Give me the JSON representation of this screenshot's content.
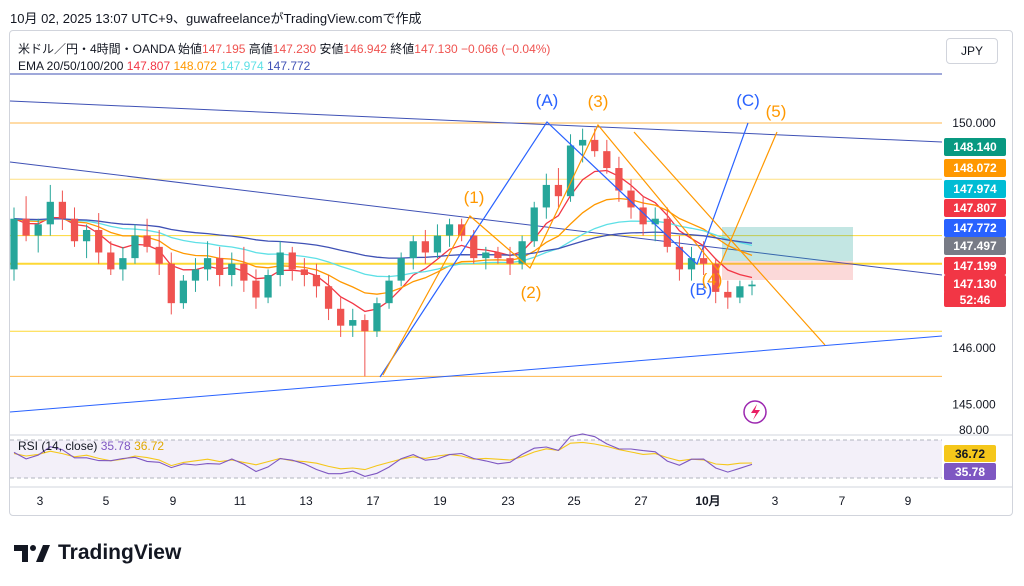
{
  "header": {
    "attribution": "10月 02, 2025 13:07 UTC+9、guwafreelanceがTradingView.comで作成"
  },
  "legend": {
    "symbol": "米ドル／円・4時間・OANDA",
    "open_label": "始値",
    "open": "147.195",
    "high_label": "高値",
    "high": "147.230",
    "low_label": "安値",
    "low": "146.942",
    "close_label": "終値",
    "close": "147.130",
    "change": "−0.066 (−0.04%)",
    "ema_label": "EMA 20/50/100/200",
    "ema_values": [
      "147.807",
      "148.072",
      "147.974",
      "147.772"
    ]
  },
  "currency_button": "JPY",
  "rsi": {
    "label": "RSI (14, close)",
    "value": "35.78",
    "ma_value": "36.72"
  },
  "footer": {
    "brand": "TradingView"
  },
  "colors": {
    "up": "#26a69a",
    "down": "#ef5350",
    "ema20": "#f23645",
    "ema50": "#ff9800",
    "ema100": "#5ee0e6",
    "ema200": "#3f51b5",
    "wave_blue": "#2962ff",
    "wave_orange": "#ff9800",
    "rsi_line": "#7e57c2",
    "rsi_ma": "#f5c71a"
  },
  "chart_data": {
    "type": "candlestick",
    "timeframe": "4時間",
    "y_axis_ticks": [
      "150.000",
      "146.000",
      "145.000"
    ],
    "x_axis_ticks": [
      "3",
      "5",
      "9",
      "11",
      "13",
      "17",
      "19",
      "23",
      "25",
      "27",
      "10月",
      "3",
      "7",
      "9"
    ],
    "price_labels": [
      {
        "text": "148.140",
        "color": "#089981"
      },
      {
        "text": "148.072",
        "color": "#ff9800"
      },
      {
        "text": "147.974",
        "color": "#00bcd4"
      },
      {
        "text": "147.807",
        "color": "#f23645"
      },
      {
        "text": "147.772",
        "color": "#2962ff"
      },
      {
        "text": "147.497",
        "color": "#787b86"
      },
      {
        "text": "147.199",
        "color": "#f23645"
      },
      {
        "text": "147.130",
        "color": "#f23645"
      },
      {
        "text": "52:46",
        "color": "#f23645"
      }
    ],
    "wave_labels": {
      "blue": [
        "(A)",
        "(B)",
        "(C)"
      ],
      "orange": [
        "(1)",
        "(2)",
        "(3)",
        "(4)",
        "(5)"
      ]
    },
    "horizontal_levels": [
      150.0,
      149.0,
      148.0,
      147.5,
      146.3,
      145.5
    ],
    "ohlc": [
      [
        147.4,
        148.5,
        147.2,
        148.3
      ],
      [
        148.3,
        148.7,
        147.9,
        148.0
      ],
      [
        148.0,
        148.3,
        147.7,
        148.2
      ],
      [
        148.2,
        148.9,
        148.0,
        148.6
      ],
      [
        148.6,
        148.8,
        148.1,
        148.3
      ],
      [
        148.3,
        148.5,
        147.8,
        147.9
      ],
      [
        147.9,
        148.2,
        147.6,
        148.1
      ],
      [
        148.1,
        148.4,
        147.5,
        147.7
      ],
      [
        147.7,
        147.9,
        147.3,
        147.4
      ],
      [
        147.4,
        147.8,
        147.2,
        147.6
      ],
      [
        147.6,
        148.2,
        147.5,
        148.0
      ],
      [
        148.0,
        148.3,
        147.7,
        147.8
      ],
      [
        147.8,
        148.1,
        147.3,
        147.5
      ],
      [
        147.5,
        147.7,
        146.6,
        146.8
      ],
      [
        146.8,
        147.3,
        146.7,
        147.2
      ],
      [
        147.2,
        147.6,
        147.0,
        147.4
      ],
      [
        147.4,
        147.9,
        147.2,
        147.6
      ],
      [
        147.6,
        147.8,
        147.1,
        147.3
      ],
      [
        147.3,
        147.7,
        147.1,
        147.5
      ],
      [
        147.5,
        147.8,
        147.0,
        147.2
      ],
      [
        147.2,
        147.4,
        146.7,
        146.9
      ],
      [
        146.9,
        147.4,
        146.8,
        147.3
      ],
      [
        147.3,
        147.9,
        147.1,
        147.7
      ],
      [
        147.7,
        147.8,
        147.2,
        147.4
      ],
      [
        147.4,
        147.6,
        147.1,
        147.3
      ],
      [
        147.3,
        147.5,
        146.9,
        147.1
      ],
      [
        147.1,
        147.3,
        146.5,
        146.7
      ],
      [
        146.7,
        146.9,
        146.2,
        146.4
      ],
      [
        146.4,
        146.7,
        146.2,
        146.5
      ],
      [
        146.5,
        146.6,
        145.5,
        146.3
      ],
      [
        146.3,
        146.9,
        146.2,
        146.8
      ],
      [
        146.8,
        147.3,
        146.7,
        147.2
      ],
      [
        147.2,
        147.7,
        147.1,
        147.6
      ],
      [
        147.6,
        148.0,
        147.4,
        147.9
      ],
      [
        147.9,
        148.1,
        147.5,
        147.7
      ],
      [
        147.7,
        148.2,
        147.6,
        148.0
      ],
      [
        148.0,
        148.3,
        147.8,
        148.2
      ],
      [
        148.2,
        148.3,
        147.9,
        148.0
      ],
      [
        148.0,
        148.1,
        147.5,
        147.6
      ],
      [
        147.6,
        147.8,
        147.4,
        147.7
      ],
      [
        147.7,
        147.8,
        147.5,
        147.6
      ],
      [
        147.6,
        147.8,
        147.3,
        147.5
      ],
      [
        147.5,
        148.0,
        147.4,
        147.9
      ],
      [
        147.9,
        148.6,
        147.8,
        148.5
      ],
      [
        148.5,
        149.1,
        148.3,
        148.9
      ],
      [
        148.9,
        149.2,
        148.5,
        148.7
      ],
      [
        148.7,
        149.8,
        148.6,
        149.6
      ],
      [
        149.6,
        149.9,
        149.3,
        149.7
      ],
      [
        149.7,
        149.9,
        149.4,
        149.5
      ],
      [
        149.5,
        149.7,
        149.1,
        149.2
      ],
      [
        149.2,
        149.4,
        148.6,
        148.8
      ],
      [
        148.8,
        149.0,
        148.3,
        148.5
      ],
      [
        148.5,
        148.7,
        148.0,
        148.2
      ],
      [
        148.2,
        148.5,
        147.9,
        148.3
      ],
      [
        148.3,
        148.5,
        147.7,
        147.8
      ],
      [
        147.8,
        148.0,
        147.2,
        147.4
      ],
      [
        147.4,
        147.8,
        147.2,
        147.6
      ],
      [
        147.6,
        147.9,
        147.3,
        147.5
      ],
      [
        147.5,
        147.6,
        146.8,
        147.0
      ],
      [
        147.0,
        147.2,
        146.7,
        146.9
      ],
      [
        146.9,
        147.2,
        146.8,
        147.1
      ],
      [
        147.1,
        147.2,
        146.94,
        147.13
      ]
    ]
  }
}
